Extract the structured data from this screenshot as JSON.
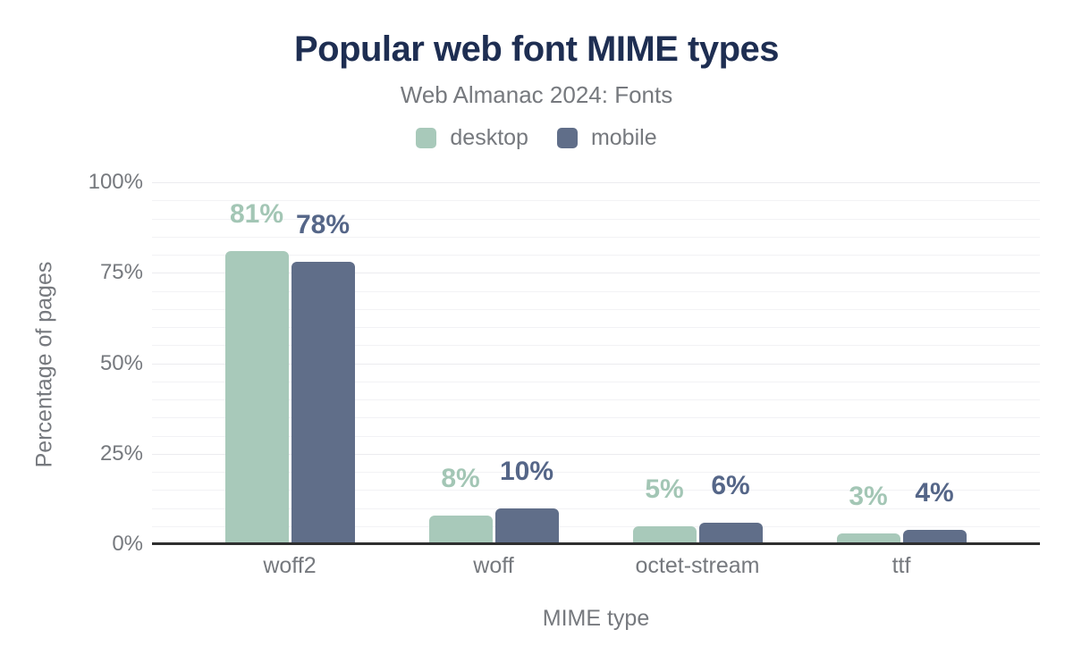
{
  "colors": {
    "title": "#1e2e52",
    "muted_text": "#76797e",
    "axis_line": "#2f2f2f",
    "grid_minor": "#f2f2f5",
    "grid_major": "#ebebef",
    "background": "#ffffff"
  },
  "chart_data": {
    "type": "bar",
    "title": "Popular web font MIME types",
    "subtitle": "Web Almanac 2024: Fonts",
    "xlabel": "MIME type",
    "ylabel": "Percentage of pages",
    "categories": [
      "woff2",
      "woff",
      "octet-stream",
      "ttf"
    ],
    "series": [
      {
        "name": "desktop",
        "color": "#a8c9ba",
        "label_color": "#a3c6b5",
        "values": [
          81,
          8,
          5,
          3
        ],
        "data_labels": [
          "81%",
          "8%",
          "5%",
          "3%"
        ]
      },
      {
        "name": "mobile",
        "color": "#606e89",
        "label_color": "#556688",
        "values": [
          78,
          10,
          6,
          4
        ],
        "data_labels": [
          "78%",
          "10%",
          "6%",
          "4%"
        ]
      }
    ],
    "ylim": [
      0,
      100
    ],
    "yticks": [
      0,
      25,
      50,
      75,
      100
    ],
    "ytick_labels": [
      "0%",
      "25%",
      "50%",
      "75%",
      "100%"
    ],
    "minor_grid_step_pct": 5,
    "grid": "horizontal",
    "legend_position": "top"
  }
}
